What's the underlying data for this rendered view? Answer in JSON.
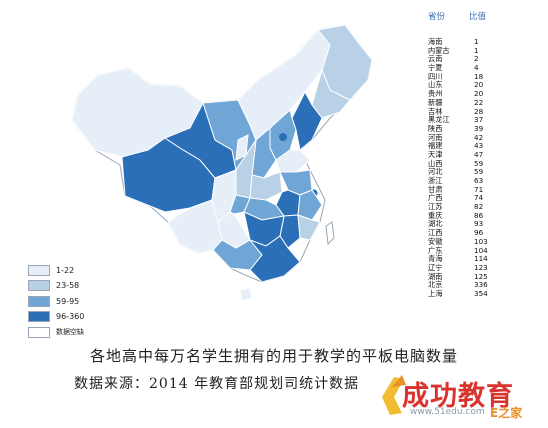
{
  "legend": [
    {
      "label": "1-22",
      "color": "#e6eef7"
    },
    {
      "label": "23-58",
      "color": "#b9d1e6"
    },
    {
      "label": "59-95",
      "color": "#6fa6d6"
    },
    {
      "label": "96-360",
      "color": "#2a6fb8"
    },
    {
      "label": "数据空缺",
      "color": "#ffffff"
    }
  ],
  "table": {
    "col_province": "省份",
    "col_ratio": "比值",
    "rows": [
      {
        "province": "海南",
        "value": "1"
      },
      {
        "province": "内蒙古",
        "value": "1"
      },
      {
        "province": "云南",
        "value": "2"
      },
      {
        "province": "宁夏",
        "value": "4"
      },
      {
        "province": "四川",
        "value": "18"
      },
      {
        "province": "山东",
        "value": "20"
      },
      {
        "province": "贵州",
        "value": "20"
      },
      {
        "province": "新疆",
        "value": "22"
      },
      {
        "province": "吉林",
        "value": "28"
      },
      {
        "province": "黑龙江",
        "value": "37"
      },
      {
        "province": "陕西",
        "value": "39"
      },
      {
        "province": "河南",
        "value": "42"
      },
      {
        "province": "福建",
        "value": "43"
      },
      {
        "province": "天津",
        "value": "47"
      },
      {
        "province": "山西",
        "value": "59"
      },
      {
        "province": "河北",
        "value": "59"
      },
      {
        "province": "浙江",
        "value": "63"
      },
      {
        "province": "甘肃",
        "value": "71"
      },
      {
        "province": "广西",
        "value": "74"
      },
      {
        "province": "江苏",
        "value": "82"
      },
      {
        "province": "重庆",
        "value": "86"
      },
      {
        "province": "湖北",
        "value": "93"
      },
      {
        "province": "江西",
        "value": "96"
      },
      {
        "province": "安徽",
        "value": "103"
      },
      {
        "province": "广东",
        "value": "104"
      },
      {
        "province": "青海",
        "value": "114"
      },
      {
        "province": "辽宁",
        "value": "123"
      },
      {
        "province": "湖南",
        "value": "125"
      },
      {
        "province": "北京",
        "value": "336"
      },
      {
        "province": "上海",
        "value": "354"
      }
    ]
  },
  "caption": {
    "line1": "各地高中每万名学生拥有的用于教学的平板电脑数量",
    "line2": "数据来源：2014 年教育部规划司统计数据"
  },
  "watermark": {
    "text": "成功教育",
    "url": "www.51edu.com",
    "badge": "E之家"
  }
}
